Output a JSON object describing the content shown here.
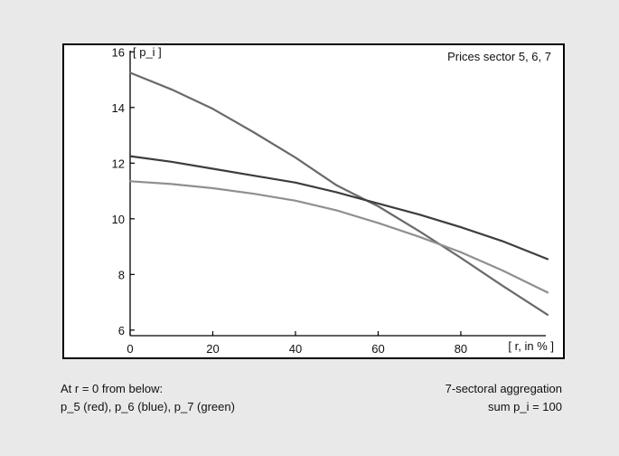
{
  "chart_data": {
    "type": "line",
    "title": "Prices sector  5, 6, 7",
    "ylabel": "[ p_i ]",
    "xlabel": "[ r, in % ]",
    "xlim": [
      0,
      101
    ],
    "ylim": [
      5.8,
      16.4
    ],
    "x_ticks": [
      0,
      20,
      40,
      60,
      80
    ],
    "y_ticks": [
      6,
      8,
      10,
      12,
      14,
      16
    ],
    "grid": false,
    "series": [
      {
        "color": "#6a6a6a",
        "x": [
          0,
          10,
          20,
          30,
          40,
          50,
          60,
          70,
          80,
          90,
          101
        ],
        "y": [
          15.25,
          14.65,
          13.95,
          13.1,
          12.2,
          11.2,
          10.45,
          9.55,
          8.6,
          7.6,
          6.55
        ]
      },
      {
        "color": "#3d3d3d",
        "x": [
          0,
          10,
          20,
          30,
          40,
          50,
          60,
          70,
          80,
          90,
          101
        ],
        "y": [
          12.25,
          12.05,
          11.8,
          11.55,
          11.3,
          10.95,
          10.55,
          10.15,
          9.7,
          9.2,
          8.55
        ]
      },
      {
        "color": "#8f8f8f",
        "x": [
          0,
          10,
          20,
          30,
          40,
          50,
          60,
          70,
          80,
          90,
          101
        ],
        "y": [
          11.35,
          11.25,
          11.1,
          10.9,
          10.65,
          10.3,
          9.85,
          9.35,
          8.8,
          8.15,
          7.35
        ]
      }
    ]
  },
  "captions": {
    "left_line1": "At  r = 0  from below:",
    "left_line2": "p_5 (red),  p_6 (blue),  p_7 (green)",
    "right_line1": "7-sectoral aggregation",
    "right_line2": "sum p_i  =  100"
  }
}
